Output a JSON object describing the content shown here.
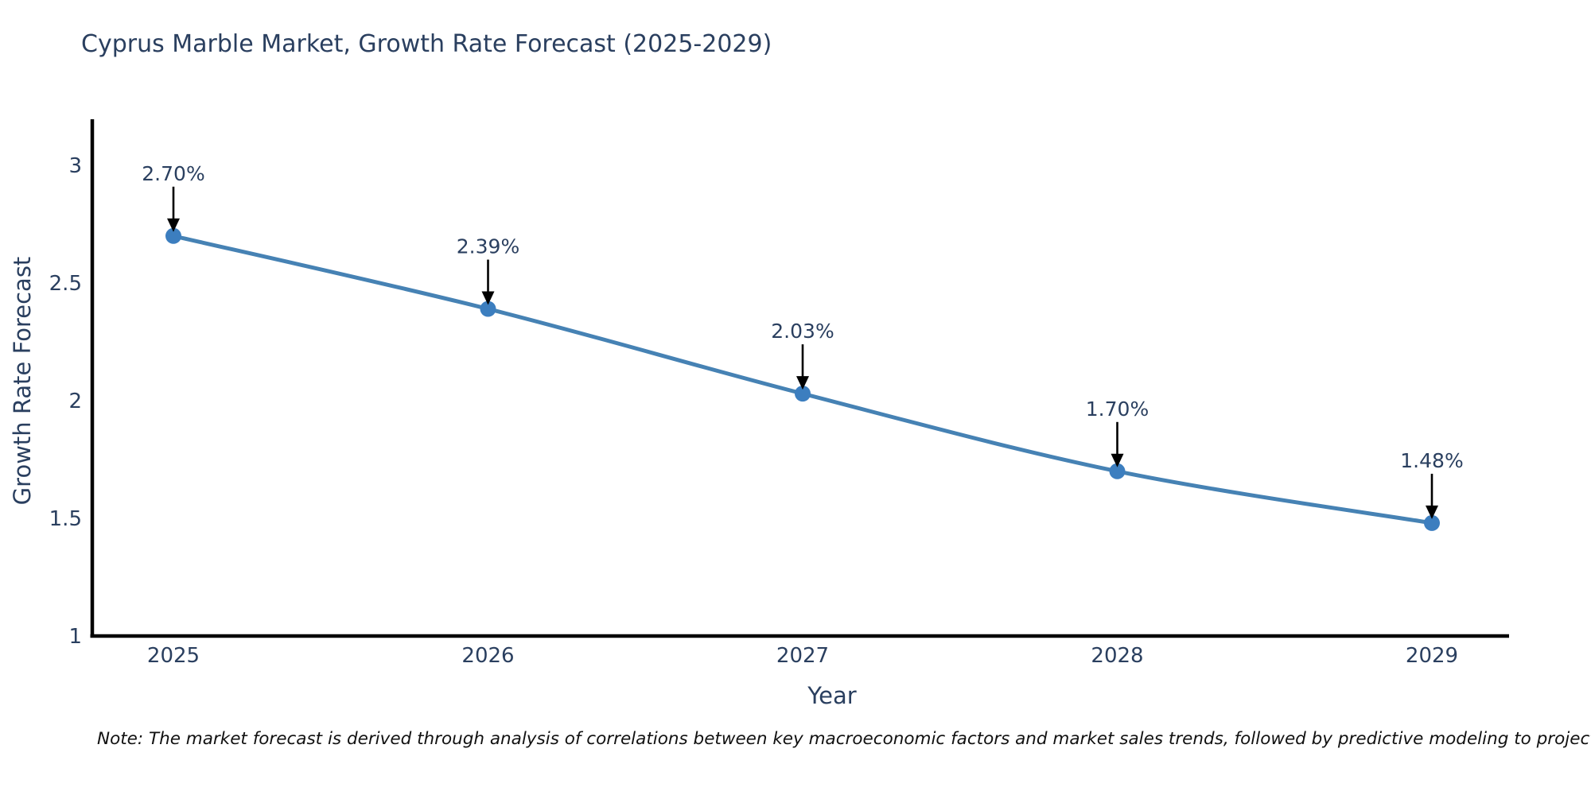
{
  "chart_data": {
    "type": "line",
    "title": "Cyprus Marble Market, Growth Rate Forecast (2025-2029)",
    "xlabel": "Year",
    "ylabel": "Growth Rate Forecast",
    "x": [
      2025,
      2026,
      2027,
      2028,
      2029
    ],
    "x_tick_labels": [
      "2025",
      "2026",
      "2027",
      "2028",
      "2029"
    ],
    "values": [
      2.7,
      2.39,
      2.03,
      1.7,
      1.48
    ],
    "point_labels": [
      "2.70%",
      "2.39%",
      "2.03%",
      "1.70%",
      "1.48%"
    ],
    "y_ticks": [
      1,
      1.5,
      2,
      2.5,
      3
    ],
    "y_tick_labels": [
      "1",
      "1.5",
      "2",
      "2.5",
      "3"
    ],
    "ylim": [
      1,
      3.2
    ],
    "grid": false,
    "legend_position": "none",
    "line_shape": "spline",
    "colors": {
      "line": "#4682b4",
      "marker": "#3c7ebf",
      "axis": "#000000",
      "tick_text": "#2a3f5f",
      "title_text": "#2a3f5f",
      "annotation_text": "#2a3f5f",
      "annotation_arrow": "#000000",
      "background": "#ffffff"
    }
  },
  "note": {
    "text": "Note: The market forecast is derived through analysis of correlations between key macroeconomic factors and market sales trends, followed by predictive modeling to project future sales"
  }
}
